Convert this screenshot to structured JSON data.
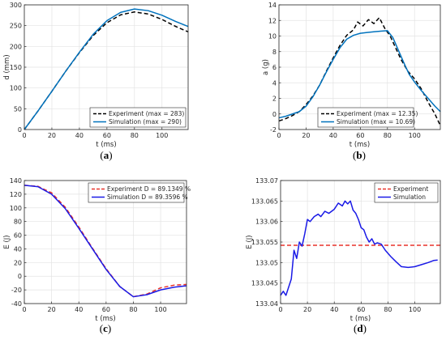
{
  "chart_data": [
    {
      "id": "a",
      "type": "line",
      "caption": "(a)",
      "xlabel": "t (ms)",
      "ylabel": "d (mm)",
      "xlim": [
        0,
        119
      ],
      "ylim": [
        0,
        300
      ],
      "xticks": [
        0,
        20,
        40,
        60,
        80,
        100
      ],
      "yticks": [
        0,
        50,
        100,
        150,
        200,
        250,
        300
      ],
      "grid": true,
      "legend_position": "bottom-right",
      "series": [
        {
          "name": "Experiment (max = 283)",
          "color": "#000000",
          "style": "dashed",
          "x": [
            0,
            10,
            20,
            30,
            40,
            50,
            60,
            70,
            80,
            90,
            100,
            110,
            119
          ],
          "y": [
            0,
            45,
            92,
            140,
            185,
            226,
            257,
            276,
            283,
            278,
            265,
            248,
            235
          ]
        },
        {
          "name": "Simulation (max = 290)",
          "color": "#0072BD",
          "style": "solid",
          "x": [
            0,
            10,
            20,
            30,
            40,
            50,
            60,
            70,
            80,
            90,
            100,
            110,
            119
          ],
          "y": [
            0,
            45,
            92,
            140,
            186,
            229,
            262,
            282,
            290,
            286,
            275,
            260,
            248
          ]
        }
      ]
    },
    {
      "id": "b",
      "type": "line",
      "caption": "(b)",
      "xlabel": "t (ms)",
      "ylabel": "a (g)",
      "xlim": [
        0,
        119
      ],
      "ylim": [
        -2,
        14
      ],
      "xticks": [
        0,
        20,
        40,
        60,
        80,
        100
      ],
      "yticks": [
        -2,
        0,
        2,
        4,
        6,
        8,
        10,
        12,
        14
      ],
      "grid": true,
      "legend_position": "bottom-left",
      "series": [
        {
          "name": "Experiment (max = 12.35)",
          "color": "#000000",
          "style": "dashed",
          "x": [
            0,
            5,
            10,
            15,
            20,
            25,
            30,
            35,
            40,
            45,
            50,
            55,
            58,
            62,
            66,
            70,
            74,
            78,
            82,
            86,
            90,
            95,
            100,
            105,
            110,
            115,
            119
          ],
          "y": [
            -0.9,
            -0.6,
            -0.2,
            0.3,
            1.2,
            2.3,
            3.7,
            5.5,
            7.2,
            8.8,
            10.1,
            10.8,
            11.8,
            11.3,
            12.1,
            11.6,
            12.35,
            11.0,
            10.0,
            8.5,
            7.0,
            5.5,
            4.5,
            3.2,
            1.5,
            0.0,
            -1.5
          ]
        },
        {
          "name": "Simulation (max = 10.69)",
          "color": "#0072BD",
          "style": "solid",
          "x": [
            0,
            5,
            10,
            15,
            20,
            25,
            30,
            35,
            40,
            45,
            50,
            55,
            60,
            65,
            70,
            75,
            80,
            84,
            88,
            92,
            96,
            100,
            105,
            110,
            115,
            119
          ],
          "y": [
            -0.5,
            -0.3,
            0.0,
            0.3,
            1.0,
            2.2,
            3.7,
            5.4,
            7.0,
            8.5,
            9.6,
            10.1,
            10.35,
            10.45,
            10.55,
            10.62,
            10.69,
            9.8,
            8.2,
            6.6,
            5.1,
            4.1,
            3.0,
            2.0,
            1.0,
            0.3
          ]
        }
      ]
    },
    {
      "id": "c",
      "type": "line",
      "caption": "(c)",
      "xlabel": "t (ms)",
      "ylabel": "E (J)",
      "xlim": [
        0,
        119
      ],
      "ylim": [
        -40,
        140
      ],
      "xticks": [
        0,
        20,
        40,
        60,
        80,
        100
      ],
      "yticks": [
        -40,
        -20,
        0,
        20,
        40,
        60,
        80,
        100,
        120,
        140
      ],
      "grid": true,
      "legend_position": "top-right",
      "series": [
        {
          "name": "Experiment D = 89.1349 %",
          "color": "#E8322A",
          "style": "dashed",
          "x": [
            0,
            10,
            20,
            30,
            40,
            50,
            60,
            70,
            80,
            90,
            100,
            110,
            119
          ],
          "y": [
            133,
            131.5,
            122,
            101,
            72,
            41,
            11,
            -15,
            -30,
            -26,
            -17,
            -13,
            -12
          ]
        },
        {
          "name": "Simulation D = 89.3596 %",
          "color": "#1A1AE6",
          "style": "solid",
          "x": [
            0,
            10,
            20,
            30,
            40,
            50,
            60,
            70,
            80,
            90,
            100,
            110,
            119
          ],
          "y": [
            133,
            131,
            120,
            99,
            70,
            40,
            10,
            -15,
            -30,
            -27,
            -20,
            -16,
            -14
          ]
        }
      ]
    },
    {
      "id": "d",
      "type": "line",
      "caption": "(d)",
      "xlabel": "t (ms)",
      "ylabel": "E (J)",
      "xlim": [
        0,
        119
      ],
      "ylim": [
        133.04,
        133.07
      ],
      "xticks": [
        0,
        20,
        40,
        60,
        80,
        100
      ],
      "yticks": [
        133.04,
        133.045,
        133.05,
        133.055,
        133.06,
        133.065,
        133.07
      ],
      "grid": true,
      "legend_position": "top-right",
      "series": [
        {
          "name": "Experiment",
          "color": "#E8322A",
          "style": "dashed",
          "x": [
            0,
            119
          ],
          "y": [
            133.0542,
            133.0542
          ]
        },
        {
          "name": "Simulation",
          "color": "#1A1AE6",
          "style": "solid",
          "x": [
            0,
            2,
            4,
            6,
            8,
            10,
            12,
            14,
            16,
            18,
            20,
            22,
            25,
            28,
            30,
            33,
            36,
            40,
            43,
            46,
            48,
            50,
            52,
            54,
            56,
            58,
            60,
            62,
            64,
            66,
            68,
            70,
            72,
            75,
            78,
            82,
            86,
            90,
            95,
            100,
            105,
            110,
            114,
            117
          ],
          "y": [
            133.042,
            133.043,
            133.042,
            133.044,
            133.046,
            133.053,
            133.051,
            133.055,
            133.054,
            133.057,
            133.0605,
            133.06,
            133.0612,
            133.0618,
            133.0612,
            133.0625,
            133.062,
            133.063,
            133.0645,
            133.0638,
            133.065,
            133.0643,
            133.065,
            133.0628,
            133.062,
            133.0605,
            133.0585,
            133.058,
            133.0562,
            133.055,
            133.0558,
            133.0545,
            133.0548,
            133.0545,
            133.053,
            133.0515,
            133.0502,
            133.049,
            133.0488,
            133.049,
            133.0495,
            133.05,
            133.0505,
            133.0506
          ]
        }
      ]
    }
  ]
}
